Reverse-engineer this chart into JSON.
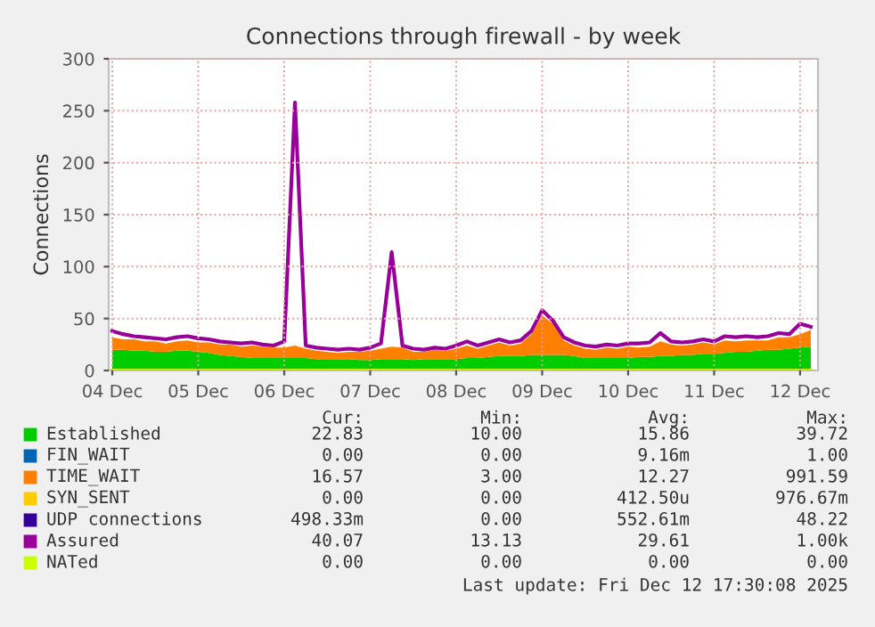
{
  "chart_data": {
    "type": "area",
    "stacked": true,
    "title": "Connections through firewall - by week",
    "ylabel": "Connections",
    "x": [
      "2025-12-04T12:00",
      "2025-12-04T15:00",
      "2025-12-04T18:00",
      "2025-12-04T21:00",
      "2025-12-05T00:00",
      "2025-12-05T03:00",
      "2025-12-05T06:00",
      "2025-12-05T09:00",
      "2025-12-05T12:00",
      "2025-12-05T15:00",
      "2025-12-05T18:00",
      "2025-12-05T21:00",
      "2025-12-06T00:00",
      "2025-12-06T03:00",
      "2025-12-06T06:00",
      "2025-12-06T09:00",
      "2025-12-06T12:00",
      "2025-12-06T15:00",
      "2025-12-06T18:00",
      "2025-12-06T21:00",
      "2025-12-07T00:00",
      "2025-12-07T03:00",
      "2025-12-07T06:00",
      "2025-12-07T09:00",
      "2025-12-07T12:00",
      "2025-12-07T15:00",
      "2025-12-07T18:00",
      "2025-12-07T21:00",
      "2025-12-08T00:00",
      "2025-12-08T03:00",
      "2025-12-08T06:00",
      "2025-12-08T09:00",
      "2025-12-08T12:00",
      "2025-12-08T15:00",
      "2025-12-08T18:00",
      "2025-12-08T21:00",
      "2025-12-09T00:00",
      "2025-12-09T03:00",
      "2025-12-09T06:00",
      "2025-12-09T09:00",
      "2025-12-09T12:00",
      "2025-12-09T15:00",
      "2025-12-09T18:00",
      "2025-12-09T21:00",
      "2025-12-10T00:00",
      "2025-12-10T03:00",
      "2025-12-10T06:00",
      "2025-12-10T09:00",
      "2025-12-10T12:00",
      "2025-12-10T15:00",
      "2025-12-10T18:00",
      "2025-12-10T21:00",
      "2025-12-11T00:00",
      "2025-12-11T03:00",
      "2025-12-11T06:00",
      "2025-12-11T09:00",
      "2025-12-11T12:00",
      "2025-12-11T15:00",
      "2025-12-11T18:00",
      "2025-12-11T21:00",
      "2025-12-12T00:00",
      "2025-12-12T03:00",
      "2025-12-12T06:00",
      "2025-12-12T09:00",
      "2025-12-12T12:00",
      "2025-12-12T15:00"
    ],
    "series": [
      {
        "name": "Established",
        "color": "#00cc00",
        "values": [
          20,
          20,
          19,
          19,
          18,
          18,
          19,
          19,
          18,
          17,
          15,
          14,
          13,
          12,
          12,
          12,
          12,
          12,
          12,
          11,
          11,
          11,
          11,
          10,
          10,
          11,
          11,
          11,
          10,
          11,
          11,
          11,
          11,
          12,
          12,
          13,
          14,
          14,
          14,
          15,
          15,
          15,
          15,
          14,
          12,
          12,
          12,
          12,
          12,
          13,
          13,
          14,
          14,
          15,
          15,
          16,
          16,
          17,
          18,
          18,
          19,
          20,
          20,
          21,
          22,
          23
        ]
      },
      {
        "name": "FIN_WAIT",
        "color": "#0066b3",
        "values": [
          null,
          null,
          null,
          null,
          null,
          null,
          null,
          null,
          null,
          null,
          null,
          null,
          null,
          null,
          null,
          null,
          null,
          null,
          null,
          null,
          null,
          null,
          null,
          null,
          null,
          null,
          null,
          null,
          null,
          null,
          null,
          null,
          null,
          null,
          null,
          null,
          null,
          null,
          null,
          null,
          null,
          null,
          null,
          null,
          null,
          null,
          null,
          null,
          null,
          null,
          null,
          null,
          null,
          null,
          null,
          null,
          null,
          null,
          null,
          null,
          null,
          null,
          null,
          null,
          null,
          null
        ]
      },
      {
        "name": "TIME_WAIT",
        "color": "#ff8000",
        "values": [
          12,
          10,
          11,
          9,
          10,
          8,
          9,
          10,
          9,
          10,
          10,
          11,
          10,
          12,
          11,
          10,
          10,
          12,
          9,
          8,
          7,
          6,
          7,
          8,
          9,
          10,
          12,
          11,
          8,
          7,
          9,
          8,
          10,
          12,
          9,
          11,
          13,
          10,
          12,
          20,
          38,
          30,
          14,
          10,
          9,
          8,
          10,
          9,
          11,
          9,
          10,
          14,
          11,
          9,
          10,
          11,
          9,
          12,
          10,
          11,
          10,
          9,
          12,
          11,
          13,
          16
        ]
      },
      {
        "name": "SYN_SENT",
        "color": "#ffcc00",
        "values": [
          null,
          null,
          null,
          null,
          null,
          null,
          null,
          null,
          null,
          null,
          null,
          null,
          null,
          null,
          null,
          null,
          null,
          null,
          null,
          null,
          null,
          null,
          null,
          null,
          null,
          null,
          null,
          null,
          null,
          null,
          null,
          null,
          null,
          null,
          null,
          null,
          null,
          null,
          null,
          null,
          null,
          null,
          null,
          null,
          null,
          null,
          null,
          null,
          null,
          null,
          null,
          null,
          null,
          null,
          null,
          null,
          null,
          null,
          null,
          null,
          null,
          null,
          null,
          null,
          null,
          null
        ]
      },
      {
        "name": "UDP connections",
        "color": "#330099",
        "values": [
          null,
          null,
          null,
          null,
          null,
          null,
          null,
          null,
          null,
          null,
          null,
          null,
          null,
          null,
          null,
          null,
          null,
          null,
          null,
          null,
          null,
          null,
          null,
          null,
          null,
          null,
          null,
          null,
          null,
          null,
          null,
          null,
          null,
          null,
          null,
          null,
          null,
          null,
          null,
          null,
          null,
          null,
          null,
          null,
          null,
          null,
          null,
          null,
          null,
          null,
          null,
          null,
          null,
          null,
          null,
          null,
          null,
          null,
          null,
          null,
          null,
          null,
          null,
          null,
          null,
          null
        ]
      },
      {
        "name": "Assured",
        "color": "#990099",
        "type": "line",
        "values": [
          38,
          35,
          33,
          32,
          31,
          30,
          32,
          33,
          31,
          30,
          28,
          27,
          26,
          27,
          25,
          24,
          28,
          258,
          24,
          22,
          21,
          20,
          21,
          20,
          22,
          26,
          114,
          24,
          21,
          20,
          22,
          21,
          24,
          28,
          24,
          27,
          30,
          27,
          29,
          38,
          58,
          48,
          32,
          27,
          24,
          23,
          25,
          24,
          26,
          26,
          27,
          36,
          28,
          27,
          28,
          30,
          28,
          33,
          32,
          33,
          32,
          33,
          36,
          35,
          45,
          42
        ]
      },
      {
        "name": "NATed",
        "color": "#ccff00",
        "type": "line",
        "values": [
          0,
          0,
          0,
          0,
          0,
          0,
          0,
          0,
          0,
          0,
          0,
          0,
          0,
          0,
          0,
          0,
          0,
          0,
          0,
          0,
          0,
          0,
          0,
          0,
          0,
          0,
          0,
          0,
          0,
          0,
          0,
          0,
          0,
          0,
          0,
          0,
          0,
          0,
          0,
          0,
          0,
          0,
          0,
          0,
          0,
          0,
          0,
          0,
          0,
          0,
          0,
          0,
          0,
          0,
          0,
          0,
          0,
          0,
          0,
          0,
          0,
          0,
          0,
          0,
          0,
          0
        ]
      }
    ],
    "xlim": [
      "2025-12-04T11:00",
      "2025-12-12T17:00"
    ],
    "xticks": [
      {
        "value": "2025-12-04T12:00",
        "label": "04 Dec"
      },
      {
        "value": "2025-12-05T12:00",
        "label": "05 Dec"
      },
      {
        "value": "2025-12-06T12:00",
        "label": "06 Dec"
      },
      {
        "value": "2025-12-07T12:00",
        "label": "07 Dec"
      },
      {
        "value": "2025-12-08T12:00",
        "label": "08 Dec"
      },
      {
        "value": "2025-12-09T12:00",
        "label": "09 Dec"
      },
      {
        "value": "2025-12-10T12:00",
        "label": "10 Dec"
      },
      {
        "value": "2025-12-11T12:00",
        "label": "11 Dec"
      },
      {
        "value": "2025-12-12T12:00",
        "label": "12 Dec"
      }
    ],
    "ylim": [
      0,
      300
    ],
    "yticks": [
      0,
      50,
      100,
      150,
      200,
      250,
      300
    ],
    "grid": true,
    "legend": "bottom",
    "annotations": [
      "Cur:",
      "Min:",
      "Avg:",
      "Max:",
      "22.83",
      "10.00",
      "15.86",
      "39.72",
      "0.00",
      "0.00",
      "9.16m",
      "1.00",
      "16.57",
      "3.00",
      "12.27",
      "991.59",
      "0.00",
      "0.00",
      "412.50u",
      "976.67m",
      "498.33m",
      "0.00",
      "552.61m",
      "48.22",
      "40.07",
      "13.13",
      "29.61",
      "1.00k",
      "0.00",
      "0.00",
      "0.00",
      "0.00",
      "Last update: Fri Dec 12 17:30:08 2025"
    ]
  }
}
